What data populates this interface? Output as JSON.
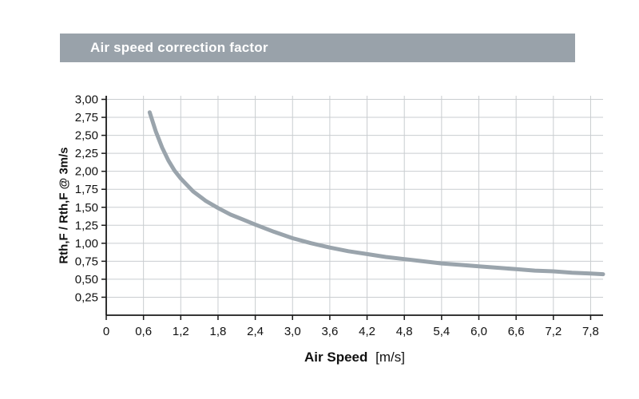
{
  "header": {
    "title": "Air speed correction factor"
  },
  "colors": {
    "header_bg": "#99a2aa",
    "header_text": "#ffffff",
    "grid": "#c9cdd0",
    "axis": "#1a1a1a",
    "line": "#9aa4ac",
    "tick_text": "#111111"
  },
  "chart_data": {
    "type": "line",
    "title": "Air speed correction factor",
    "xlabel": "Air Speed [m/s]",
    "xlabel_bold": "Air Speed",
    "xlabel_unit": "[m/s]",
    "ylabel": "Rth,F / Rth,F @ 3m/s",
    "xlim": [
      0,
      8.0
    ],
    "ylim": [
      0,
      3.05
    ],
    "grid": true,
    "legend": "none",
    "line_width": 5,
    "x_ticks": [
      {
        "value": 0,
        "label": "0"
      },
      {
        "value": 0.6,
        "label": "0,6"
      },
      {
        "value": 1.2,
        "label": "1,2"
      },
      {
        "value": 1.8,
        "label": "1,8"
      },
      {
        "value": 2.4,
        "label": "2,4"
      },
      {
        "value": 3.0,
        "label": "3,0"
      },
      {
        "value": 3.6,
        "label": "3,6"
      },
      {
        "value": 4.2,
        "label": "4,2"
      },
      {
        "value": 4.8,
        "label": "4,8"
      },
      {
        "value": 5.4,
        "label": "5,4"
      },
      {
        "value": 6.0,
        "label": "6,0"
      },
      {
        "value": 6.6,
        "label": "6,6"
      },
      {
        "value": 7.2,
        "label": "7,2"
      },
      {
        "value": 7.8,
        "label": "7,8"
      }
    ],
    "y_ticks": [
      {
        "value": 0.25,
        "label": "0,25"
      },
      {
        "value": 0.5,
        "label": "0,50"
      },
      {
        "value": 0.75,
        "label": "0,75"
      },
      {
        "value": 1.0,
        "label": "1,00"
      },
      {
        "value": 1.25,
        "label": "1,25"
      },
      {
        "value": 1.5,
        "label": "1,50"
      },
      {
        "value": 1.75,
        "label": "1,75"
      },
      {
        "value": 2.0,
        "label": "2,00"
      },
      {
        "value": 2.25,
        "label": "2,25"
      },
      {
        "value": 2.5,
        "label": "2,50"
      },
      {
        "value": 2.75,
        "label": "2,75"
      },
      {
        "value": 3.0,
        "label": "3,00"
      }
    ],
    "series": [
      {
        "points": [
          [
            0.7,
            2.82
          ],
          [
            0.8,
            2.55
          ],
          [
            0.9,
            2.33
          ],
          [
            1.0,
            2.15
          ],
          [
            1.1,
            2.01
          ],
          [
            1.2,
            1.9
          ],
          [
            1.4,
            1.72
          ],
          [
            1.6,
            1.59
          ],
          [
            1.8,
            1.49
          ],
          [
            2.0,
            1.4
          ],
          [
            2.2,
            1.33
          ],
          [
            2.4,
            1.26
          ],
          [
            2.7,
            1.16
          ],
          [
            3.0,
            1.07
          ],
          [
            3.3,
            1.0
          ],
          [
            3.6,
            0.94
          ],
          [
            3.9,
            0.89
          ],
          [
            4.2,
            0.85
          ],
          [
            4.5,
            0.81
          ],
          [
            4.8,
            0.78
          ],
          [
            5.1,
            0.75
          ],
          [
            5.4,
            0.72
          ],
          [
            5.7,
            0.7
          ],
          [
            6.0,
            0.68
          ],
          [
            6.3,
            0.66
          ],
          [
            6.6,
            0.64
          ],
          [
            6.9,
            0.62
          ],
          [
            7.2,
            0.61
          ],
          [
            7.5,
            0.59
          ],
          [
            7.8,
            0.58
          ],
          [
            8.0,
            0.57
          ]
        ]
      }
    ]
  }
}
